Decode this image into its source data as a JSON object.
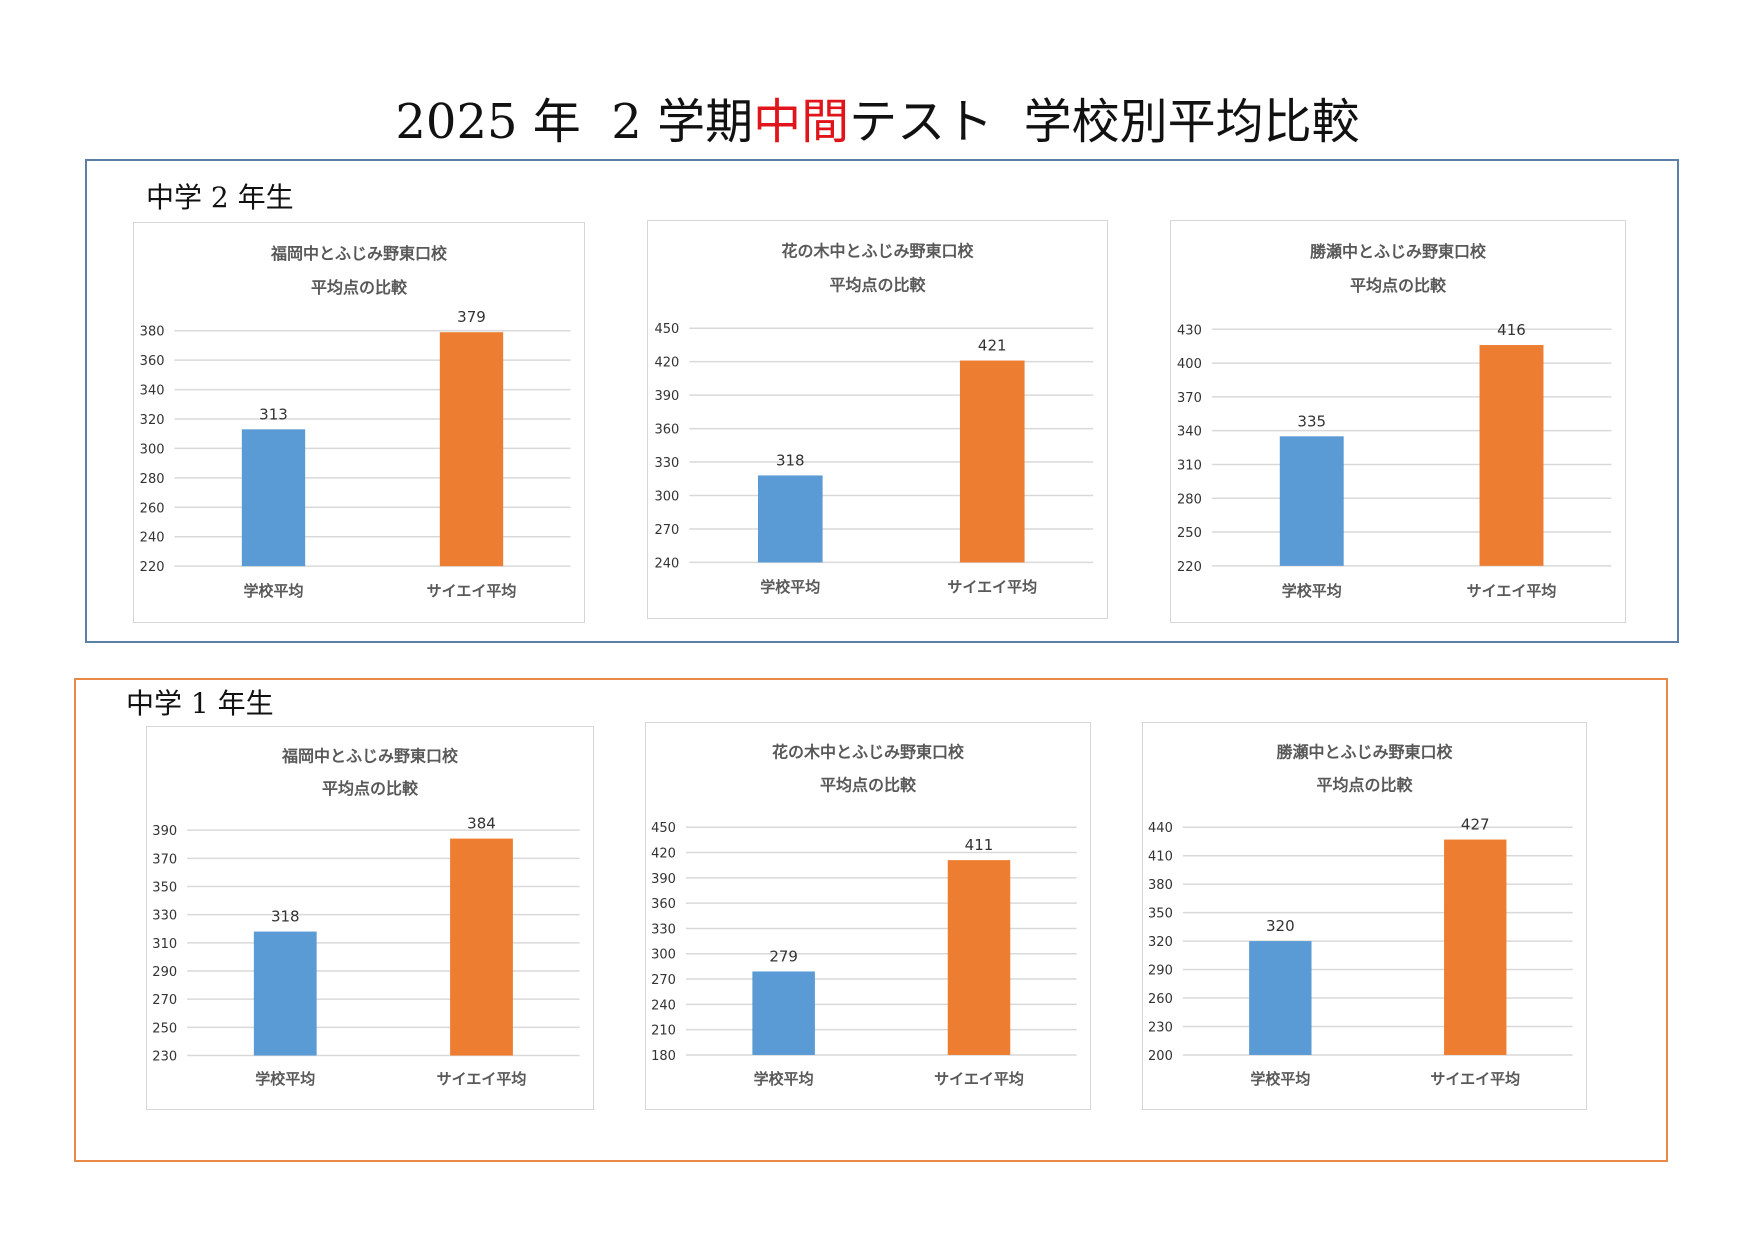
{
  "title": {
    "prefix": "2025 年  2 学期",
    "highlight": "中間",
    "suffix": "テスト  学校別平均比較",
    "highlight_color": "#e0141b"
  },
  "colors": {
    "school": "#5b9bd5",
    "saiei": "#ed7d31",
    "grid": "#d9d9d9"
  },
  "sections": [
    {
      "label": "中学 2 年生"
    },
    {
      "label": "中学 1 年生"
    }
  ],
  "chart_data": [
    {
      "type": "bar",
      "section": "中学 2 年生",
      "title": [
        "福岡中とふじみ野東口校",
        "平均点の比較"
      ],
      "categories": [
        "学校平均",
        "サイエイ平均"
      ],
      "values": [
        313,
        379
      ],
      "ylim": [
        220,
        380
      ],
      "ystep": 20
    },
    {
      "type": "bar",
      "section": "中学 2 年生",
      "title": [
        "花の木中とふじみ野東口校",
        "平均点の比較"
      ],
      "categories": [
        "学校平均",
        "サイエイ平均"
      ],
      "values": [
        318,
        421
      ],
      "ylim": [
        240,
        450
      ],
      "ystep": 30
    },
    {
      "type": "bar",
      "section": "中学 2 年生",
      "title": [
        "勝瀬中とふじみ野東口校",
        "平均点の比較"
      ],
      "categories": [
        "学校平均",
        "サイエイ平均"
      ],
      "values": [
        335,
        416
      ],
      "ylim": [
        220,
        430
      ],
      "ystep": 30
    },
    {
      "type": "bar",
      "section": "中学 1 年生",
      "title": [
        "福岡中とふじみ野東口校",
        "平均点の比較"
      ],
      "categories": [
        "学校平均",
        "サイエイ平均"
      ],
      "values": [
        318,
        384
      ],
      "ylim": [
        230,
        390
      ],
      "ystep": 20
    },
    {
      "type": "bar",
      "section": "中学 1 年生",
      "title": [
        "花の木中とふじみ野東口校",
        "平均点の比較"
      ],
      "categories": [
        "学校平均",
        "サイエイ平均"
      ],
      "values": [
        279,
        411
      ],
      "ylim": [
        180,
        450
      ],
      "ystep": 30
    },
    {
      "type": "bar",
      "section": "中学 1 年生",
      "title": [
        "勝瀬中とふじみ野東口校",
        "平均点の比較"
      ],
      "categories": [
        "学校平均",
        "サイエイ平均"
      ],
      "values": [
        320,
        427
      ],
      "ylim": [
        200,
        440
      ],
      "ystep": 30
    }
  ]
}
